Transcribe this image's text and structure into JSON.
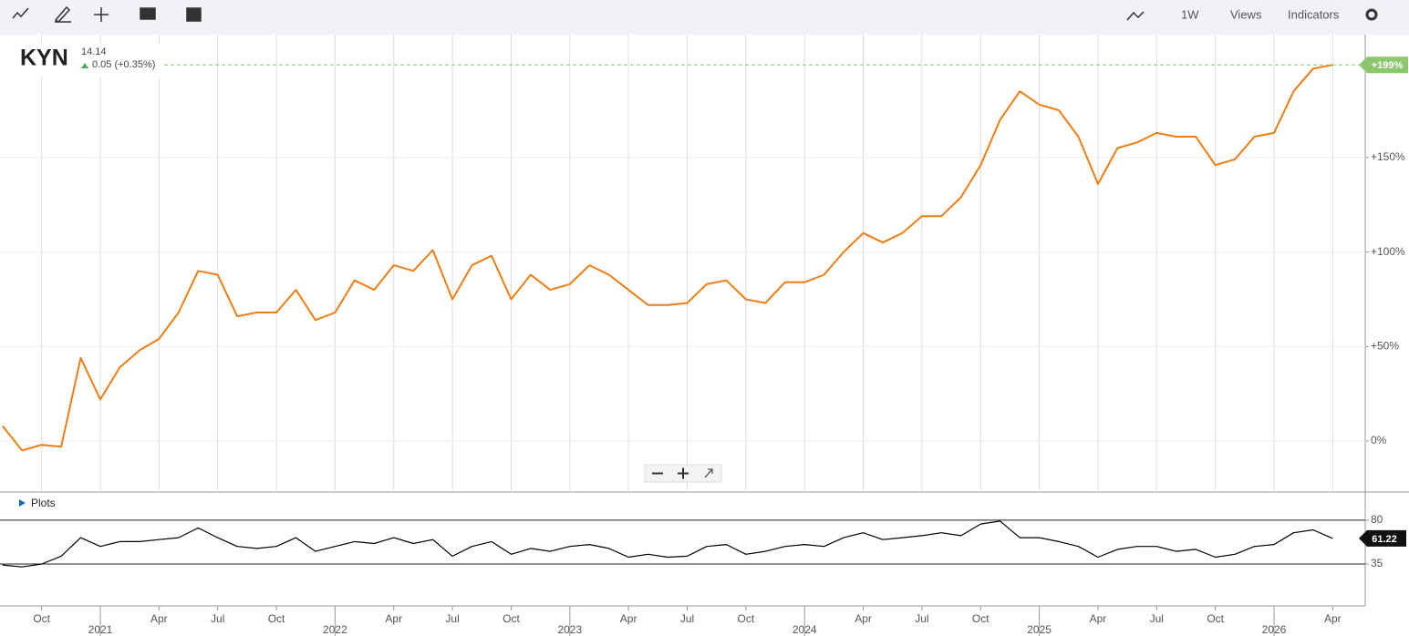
{
  "toolbar": {
    "interval": "1W",
    "views": "Views",
    "indicators": "Indicators"
  },
  "header": {
    "symbol": "KYN",
    "price": "14.14",
    "change": "0.05 (+0.35%)"
  },
  "chart_data": [
    {
      "type": "line",
      "color": "#f07d14",
      "grid": true,
      "x": [
        "2020-08",
        "2020-09",
        "2020-10",
        "2020-11",
        "2020-12",
        "2021-01",
        "2021-02",
        "2021-03",
        "2021-04",
        "2021-05",
        "2021-06",
        "2021-07",
        "2021-08",
        "2021-09",
        "2021-10",
        "2021-11",
        "2021-12",
        "2022-01",
        "2022-02",
        "2022-03",
        "2022-04",
        "2022-05",
        "2022-06",
        "2022-07",
        "2022-08",
        "2022-09",
        "2022-10",
        "2022-11",
        "2022-12",
        "2023-01",
        "2023-02",
        "2023-03",
        "2023-04",
        "2023-05",
        "2023-06",
        "2023-07",
        "2023-08",
        "2023-09",
        "2023-10",
        "2023-11",
        "2023-12",
        "2024-01",
        "2024-02",
        "2024-03",
        "2024-04",
        "2024-05",
        "2024-06",
        "2024-07",
        "2024-08",
        "2024-09",
        "2024-10",
        "2024-11",
        "2024-12",
        "2025-01",
        "2025-02",
        "2025-03",
        "2025-04",
        "2025-05",
        "2025-06",
        "2025-07",
        "2025-08",
        "2025-09",
        "2025-10",
        "2025-11",
        "2025-12",
        "2026-01",
        "2026-02",
        "2026-03",
        "2026-04"
      ],
      "values": [
        8,
        -5,
        -2,
        -3,
        44,
        22,
        39,
        48,
        54,
        68,
        90,
        88,
        66,
        68,
        68,
        80,
        64,
        68,
        85,
        80,
        93,
        90,
        101,
        75,
        93,
        98,
        75,
        88,
        80,
        83,
        93,
        88,
        80,
        72,
        72,
        73,
        83,
        85,
        75,
        73,
        84,
        84,
        88,
        100,
        110,
        105,
        110,
        119,
        119,
        129,
        146,
        170,
        185,
        178,
        175,
        161,
        136,
        155,
        158,
        163,
        161,
        161,
        146,
        149,
        161,
        163,
        185,
        197,
        199
      ],
      "ylim": [
        -26,
        215
      ],
      "yticks": [
        {
          "value": 0,
          "label": "0%"
        },
        {
          "value": 50,
          "label": "+50%"
        },
        {
          "value": 100,
          "label": "+100%"
        },
        {
          "value": 150,
          "label": "+150%"
        }
      ],
      "xticks": [
        {
          "value": "2020-10",
          "label": "Oct"
        },
        {
          "value": "2021-04",
          "label": "Apr"
        },
        {
          "value": "2021-07",
          "label": "Jul"
        },
        {
          "value": "2021-10",
          "label": "Oct"
        },
        {
          "value": "2022-04",
          "label": "Apr"
        },
        {
          "value": "2022-07",
          "label": "Jul"
        },
        {
          "value": "2022-10",
          "label": "Oct"
        },
        {
          "value": "2023-04",
          "label": "Apr"
        },
        {
          "value": "2023-07",
          "label": "Jul"
        },
        {
          "value": "2023-10",
          "label": "Oct"
        },
        {
          "value": "2024-04",
          "label": "Apr"
        },
        {
          "value": "2024-07",
          "label": "Jul"
        },
        {
          "value": "2024-10",
          "label": "Oct"
        },
        {
          "value": "2025-04",
          "label": "Apr"
        },
        {
          "value": "2025-07",
          "label": "Jul"
        },
        {
          "value": "2025-10",
          "label": "Oct"
        },
        {
          "value": "2026-04",
          "label": "Apr"
        }
      ],
      "year_ticks": [
        {
          "value": "2021-01",
          "label": "2021"
        },
        {
          "value": "2022-01",
          "label": "2022"
        },
        {
          "value": "2023-01",
          "label": "2023"
        },
        {
          "value": "2024-01",
          "label": "2024"
        },
        {
          "value": "2025-01",
          "label": "2025"
        },
        {
          "value": "2026-01",
          "label": "2026"
        }
      ],
      "current": {
        "value": 199,
        "label": "+199%",
        "color": "#8cc66e"
      }
    },
    {
      "type": "line",
      "title": "Plots",
      "color": "#000000",
      "x": [
        "2020-08",
        "2020-09",
        "2020-10",
        "2020-11",
        "2020-12",
        "2021-01",
        "2021-02",
        "2021-03",
        "2021-04",
        "2021-05",
        "2021-06",
        "2021-07",
        "2021-08",
        "2021-09",
        "2021-10",
        "2021-11",
        "2021-12",
        "2022-01",
        "2022-02",
        "2022-03",
        "2022-04",
        "2022-05",
        "2022-06",
        "2022-07",
        "2022-08",
        "2022-09",
        "2022-10",
        "2022-11",
        "2022-12",
        "2023-01",
        "2023-02",
        "2023-03",
        "2023-04",
        "2023-05",
        "2023-06",
        "2023-07",
        "2023-08",
        "2023-09",
        "2023-10",
        "2023-11",
        "2023-12",
        "2024-01",
        "2024-02",
        "2024-03",
        "2024-04",
        "2024-05",
        "2024-06",
        "2024-07",
        "2024-08",
        "2024-09",
        "2024-10",
        "2024-11",
        "2024-12",
        "2025-01",
        "2025-02",
        "2025-03",
        "2025-04",
        "2025-05",
        "2025-06",
        "2025-07",
        "2025-08",
        "2025-09",
        "2025-10",
        "2025-11",
        "2025-12",
        "2026-01",
        "2026-02",
        "2026-03",
        "2026-04"
      ],
      "values": [
        34,
        32,
        35,
        43,
        62,
        53,
        58,
        58,
        60,
        62,
        72,
        62,
        53,
        51,
        53,
        62,
        48,
        53,
        58,
        56,
        62,
        56,
        60,
        43,
        53,
        58,
        45,
        51,
        48,
        53,
        55,
        51,
        42,
        45,
        42,
        43,
        53,
        55,
        45,
        48,
        53,
        55,
        53,
        62,
        67,
        60,
        62,
        64,
        67,
        64,
        76,
        79,
        62,
        62,
        58,
        53,
        42,
        50,
        53,
        53,
        48,
        50,
        42,
        45,
        53,
        55,
        67,
        70,
        61.22
      ],
      "ylim": [
        -8,
        106
      ],
      "yticks": [
        35,
        80
      ]
    }
  ]
}
